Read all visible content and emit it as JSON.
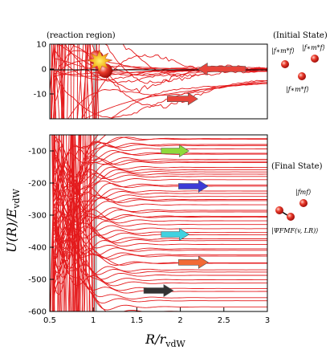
{
  "figure": {
    "ylabel_main": "U(R)/E",
    "ylabel_sub": "vdW",
    "xlabel_main": "R/r",
    "xlabel_sub": "vdW",
    "reaction_region_label": "(reaction region)",
    "initial_state_label": "(Initial State)",
    "final_state_label": "(Final State)",
    "ket_ff1": "|f∗m*f⟩",
    "ket_ff2": "|f∗m*f⟩",
    "ket_ff3": "|f∗m*f⟩",
    "ket_fm": "|fmf⟩",
    "ket_psi": "|ΨFMF(v, LR)⟩"
  },
  "colors": {
    "curves": "#e41a1c",
    "shade": "#bdbdbd",
    "arrow_red": "#e8443a",
    "arrow_green": "#8ed93a",
    "arrow_blue": "#3b3bd6",
    "arrow_cyan": "#3fd2e0",
    "arrow_orange": "#f26a35",
    "arrow_black": "#333333",
    "molecule": "#e0201b"
  },
  "chart_data": [
    {
      "type": "line",
      "panel": "top",
      "title": "(reaction region)",
      "xlabel": "",
      "ylabel": "",
      "xlim": [
        0.5,
        3
      ],
      "ylim": [
        -20,
        10
      ],
      "yticks": [
        "10",
        "0",
        "-10"
      ],
      "reference_line": 0,
      "series_description": "entrance-channel potential curves U(R)/E_vdW",
      "arrows": [
        {
          "color": "red",
          "x_start": 2.75,
          "x_end": 2.2,
          "y": 0
        },
        {
          "color": "red",
          "x_start": 1.85,
          "x_end": 2.2,
          "y": -12
        }
      ]
    },
    {
      "type": "line",
      "panel": "bottom",
      "xlabel": "R/r_vdW",
      "ylabel": "U(R)/E_vdW",
      "xlim": [
        0.5,
        3
      ],
      "ylim": [
        -600,
        -50
      ],
      "xticks": [
        "0.5",
        "1",
        "1.5",
        "2",
        "2.5",
        "3"
      ],
      "yticks": [
        "-100",
        "-200",
        "-300",
        "-400",
        "-500",
        "-600"
      ],
      "shaded_region": [
        0.97,
        1.02
      ],
      "arrows": [
        {
          "color": "green",
          "x_start": 1.78,
          "x_end": 2.1,
          "y": -100
        },
        {
          "color": "blue",
          "x_start": 1.98,
          "x_end": 2.32,
          "y": -210
        },
        {
          "color": "cyan",
          "x_start": 1.78,
          "x_end": 2.1,
          "y": -360
        },
        {
          "color": "orange",
          "x_start": 1.98,
          "x_end": 2.32,
          "y": -447
        },
        {
          "color": "black",
          "x_start": 1.58,
          "x_end": 1.92,
          "y": -535
        }
      ]
    }
  ]
}
